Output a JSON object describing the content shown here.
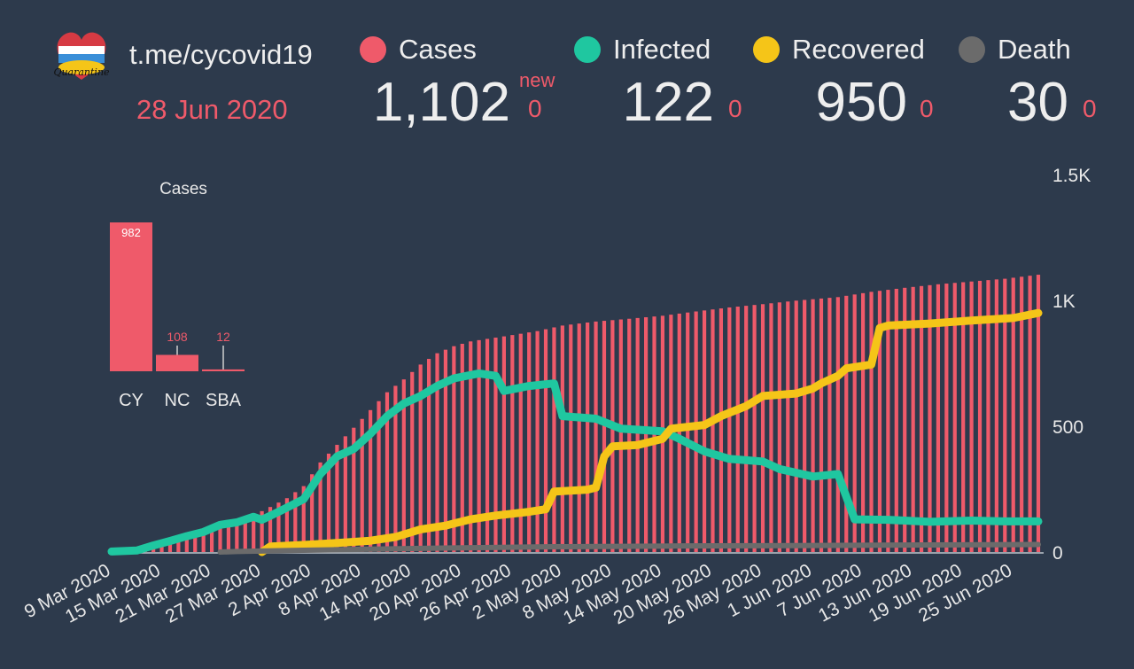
{
  "header": {
    "channel": "t.me/cycovid19",
    "date": "28 Jun 2020",
    "logo_text": "Quarantine"
  },
  "stats": {
    "new_label": "new",
    "cases": {
      "label": "Cases",
      "value": "1,102",
      "delta": "0",
      "color": "#ef5a6a"
    },
    "infected": {
      "label": "Infected",
      "value": "122",
      "delta": "0",
      "color": "#1fc7a0"
    },
    "recovered": {
      "label": "Recovered",
      "value": "950",
      "delta": "0",
      "color": "#f5c518"
    },
    "death": {
      "label": "Death",
      "value": "30",
      "delta": "0",
      "color": "#6b6b6b"
    }
  },
  "chart_data": [
    {
      "type": "line",
      "x_start": "2020-03-09",
      "x_end": "2020-06-28",
      "x_tick_labels": [
        "9 Mar 2020",
        "15 Mar 2020",
        "21 Mar 2020",
        "27 Mar 2020",
        "2 Apr 2020",
        "8 Apr 2020",
        "14 Apr 2020",
        "20 Apr 2020",
        "26 Apr 2020",
        "2 May 2020",
        "8 May 2020",
        "14 May 2020",
        "20 May 2020",
        "26 May 2020",
        "1 Jun 2020",
        "7 Jun 2020",
        "13 Jun 2020",
        "19 Jun 2020",
        "25 Jun 2020"
      ],
      "y_tick_labels": [
        "0",
        "500",
        "1K",
        "1.5K"
      ],
      "ylim": [
        0,
        1500
      ],
      "grid": false,
      "series": [
        {
          "name": "Cases",
          "style": "bar",
          "color": "#ef5a6a",
          "points": [
            [
              "2020-03-09",
              2
            ],
            [
              "2020-03-12",
              6
            ],
            [
              "2020-03-14",
              26
            ],
            [
              "2020-03-16",
              46
            ],
            [
              "2020-03-18",
              67
            ],
            [
              "2020-03-20",
              84
            ],
            [
              "2020-03-22",
              116
            ],
            [
              "2020-03-24",
              124
            ],
            [
              "2020-03-26",
              146
            ],
            [
              "2020-03-28",
              179
            ],
            [
              "2020-03-30",
              214
            ],
            [
              "2020-04-01",
              262
            ],
            [
              "2020-04-03",
              356
            ],
            [
              "2020-04-05",
              426
            ],
            [
              "2020-04-07",
              494
            ],
            [
              "2020-04-09",
              564
            ],
            [
              "2020-04-11",
              635
            ],
            [
              "2020-04-13",
              686
            ],
            [
              "2020-04-15",
              745
            ],
            [
              "2020-04-17",
              790
            ],
            [
              "2020-04-19",
              818
            ],
            [
              "2020-04-21",
              837
            ],
            [
              "2020-04-25",
              857
            ],
            [
              "2020-04-29",
              878
            ],
            [
              "2020-05-02",
              900
            ],
            [
              "2020-05-06",
              916
            ],
            [
              "2020-05-10",
              927
            ],
            [
              "2020-05-14",
              939
            ],
            [
              "2020-05-18",
              956
            ],
            [
              "2020-05-22",
              972
            ],
            [
              "2020-05-26",
              985
            ],
            [
              "2020-05-30",
              999
            ],
            [
              "2020-06-04",
              1013
            ],
            [
              "2020-06-08",
              1034
            ],
            [
              "2020-06-12",
              1050
            ],
            [
              "2020-06-16",
              1064
            ],
            [
              "2020-06-20",
              1075
            ],
            [
              "2020-06-24",
              1086
            ],
            [
              "2020-06-28",
              1102
            ]
          ]
        },
        {
          "name": "Infected",
          "style": "line",
          "color": "#1fc7a0",
          "points": [
            [
              "2020-03-09",
              2
            ],
            [
              "2020-03-12",
              6
            ],
            [
              "2020-03-14",
              26
            ],
            [
              "2020-03-16",
              44
            ],
            [
              "2020-03-18",
              63
            ],
            [
              "2020-03-20",
              80
            ],
            [
              "2020-03-22",
              108
            ],
            [
              "2020-03-24",
              118
            ],
            [
              "2020-03-26",
              140
            ],
            [
              "2020-03-27",
              128
            ],
            [
              "2020-03-29",
              160
            ],
            [
              "2020-04-01",
              210
            ],
            [
              "2020-04-03",
              310
            ],
            [
              "2020-04-05",
              380
            ],
            [
              "2020-04-07",
              410
            ],
            [
              "2020-04-09",
              470
            ],
            [
              "2020-04-11",
              540
            ],
            [
              "2020-04-13",
              590
            ],
            [
              "2020-04-15",
              620
            ],
            [
              "2020-04-17",
              660
            ],
            [
              "2020-04-19",
              690
            ],
            [
              "2020-04-22",
              710
            ],
            [
              "2020-04-24",
              700
            ],
            [
              "2020-04-25",
              640
            ],
            [
              "2020-04-28",
              660
            ],
            [
              "2020-05-01",
              670
            ],
            [
              "2020-05-02",
              540
            ],
            [
              "2020-05-06",
              530
            ],
            [
              "2020-05-09",
              490
            ],
            [
              "2020-05-14",
              480
            ],
            [
              "2020-05-16",
              450
            ],
            [
              "2020-05-19",
              400
            ],
            [
              "2020-05-22",
              370
            ],
            [
              "2020-05-26",
              360
            ],
            [
              "2020-05-28",
              330
            ],
            [
              "2020-06-01",
              300
            ],
            [
              "2020-06-04",
              310
            ],
            [
              "2020-06-06",
              130
            ],
            [
              "2020-06-10",
              128
            ],
            [
              "2020-06-15",
              120
            ],
            [
              "2020-06-20",
              125
            ],
            [
              "2020-06-24",
              122
            ],
            [
              "2020-06-28",
              122
            ]
          ]
        },
        {
          "name": "Recovered",
          "style": "line",
          "color": "#f5c518",
          "points": [
            [
              "2020-03-27",
              0
            ],
            [
              "2020-03-28",
              22
            ],
            [
              "2020-04-01",
              28
            ],
            [
              "2020-04-05",
              36
            ],
            [
              "2020-04-09",
              45
            ],
            [
              "2020-04-12",
              60
            ],
            [
              "2020-04-15",
              90
            ],
            [
              "2020-04-18",
              105
            ],
            [
              "2020-04-21",
              130
            ],
            [
              "2020-04-24",
              145
            ],
            [
              "2020-04-28",
              160
            ],
            [
              "2020-04-30",
              170
            ],
            [
              "2020-05-01",
              240
            ],
            [
              "2020-05-05",
              248
            ],
            [
              "2020-05-06",
              256
            ],
            [
              "2020-05-07",
              380
            ],
            [
              "2020-05-08",
              420
            ],
            [
              "2020-05-11",
              425
            ],
            [
              "2020-05-14",
              450
            ],
            [
              "2020-05-15",
              490
            ],
            [
              "2020-05-19",
              505
            ],
            [
              "2020-05-21",
              540
            ],
            [
              "2020-05-24",
              580
            ],
            [
              "2020-05-26",
              620
            ],
            [
              "2020-05-30",
              630
            ],
            [
              "2020-06-01",
              650
            ],
            [
              "2020-06-02",
              670
            ],
            [
              "2020-06-04",
              700
            ],
            [
              "2020-06-05",
              730
            ],
            [
              "2020-06-08",
              745
            ],
            [
              "2020-06-09",
              890
            ],
            [
              "2020-06-10",
              900
            ],
            [
              "2020-06-15",
              908
            ],
            [
              "2020-06-20",
              920
            ],
            [
              "2020-06-25",
              930
            ],
            [
              "2020-06-28",
              950
            ]
          ]
        },
        {
          "name": "Death",
          "style": "line",
          "color": "#6b6b6b",
          "points": [
            [
              "2020-03-22",
              0
            ],
            [
              "2020-03-24",
              2
            ],
            [
              "2020-04-01",
              7
            ],
            [
              "2020-04-10",
              12
            ],
            [
              "2020-04-20",
              17
            ],
            [
              "2020-05-01",
              21
            ],
            [
              "2020-05-15",
              24
            ],
            [
              "2020-06-01",
              26
            ],
            [
              "2020-06-15",
              28
            ],
            [
              "2020-06-28",
              30
            ]
          ]
        }
      ]
    },
    {
      "type": "bar",
      "title": "Cases",
      "categories": [
        "CY",
        "NC",
        "SBA"
      ],
      "values": [
        982,
        108,
        12
      ],
      "value_labels": [
        "982",
        "108",
        "12"
      ],
      "color": "#ef5a6a"
    }
  ]
}
